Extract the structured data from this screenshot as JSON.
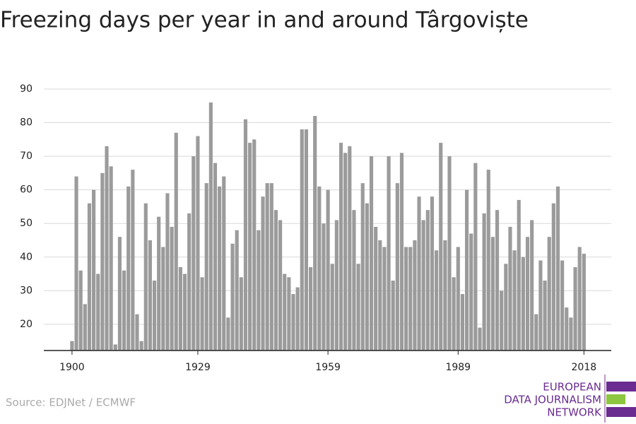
{
  "chart_data": {
    "type": "bar",
    "title": "Freezing days per year in and around Târgoviște",
    "source": "Source: EDJNet / ECMWF",
    "logo": [
      "EUROPEAN",
      "DATA JOURNALISM",
      "NETWORK"
    ],
    "x": [
      1900,
      1901,
      1902,
      1903,
      1904,
      1905,
      1906,
      1907,
      1908,
      1909,
      1910,
      1911,
      1912,
      1913,
      1914,
      1915,
      1916,
      1917,
      1918,
      1919,
      1920,
      1921,
      1922,
      1923,
      1924,
      1925,
      1926,
      1927,
      1928,
      1929,
      1930,
      1931,
      1932,
      1933,
      1934,
      1935,
      1936,
      1937,
      1938,
      1939,
      1940,
      1941,
      1942,
      1943,
      1944,
      1945,
      1946,
      1947,
      1948,
      1949,
      1950,
      1951,
      1952,
      1953,
      1954,
      1955,
      1956,
      1957,
      1958,
      1959,
      1960,
      1961,
      1962,
      1963,
      1964,
      1965,
      1966,
      1967,
      1968,
      1969,
      1970,
      1971,
      1972,
      1973,
      1974,
      1975,
      1976,
      1977,
      1978,
      1979,
      1980,
      1981,
      1982,
      1983,
      1984,
      1985,
      1986,
      1987,
      1988,
      1989,
      1990,
      1991,
      1992,
      1993,
      1994,
      1995,
      1996,
      1997,
      1998,
      1999,
      2000,
      2001,
      2002,
      2003,
      2004,
      2005,
      2006,
      2007,
      2008,
      2009,
      2010,
      2011,
      2012,
      2013,
      2014,
      2015,
      2016,
      2017,
      2018
    ],
    "values": [
      15,
      64,
      36,
      26,
      56,
      60,
      35,
      65,
      73,
      67,
      14,
      46,
      36,
      61,
      66,
      23,
      15,
      56,
      45,
      33,
      52,
      43,
      59,
      49,
      77,
      37,
      35,
      53,
      70,
      76,
      34,
      62,
      86,
      68,
      61,
      64,
      22,
      44,
      48,
      34,
      81,
      74,
      75,
      48,
      58,
      62,
      62,
      54,
      51,
      35,
      34,
      29,
      31,
      78,
      78,
      37,
      82,
      61,
      50,
      60,
      38,
      51,
      74,
      71,
      73,
      54,
      38,
      62,
      56,
      70,
      49,
      45,
      43,
      70,
      33,
      62,
      71,
      43,
      43,
      45,
      58,
      51,
      54,
      58,
      42,
      74,
      45,
      70,
      34,
      43,
      29,
      60,
      47,
      68,
      19,
      53,
      66,
      46,
      54,
      30,
      38,
      49,
      42,
      57,
      40,
      46,
      51,
      23,
      39,
      33,
      46,
      56,
      61,
      39,
      25,
      22,
      37,
      43,
      41
    ],
    "color": "#9b9b9b",
    "xlim": [
      1893.5,
      2024.3
    ],
    "xticks": [
      1900,
      1929,
      1959,
      1989,
      2018
    ],
    "ylim": [
      12.2,
      90
    ],
    "yticks": [
      20,
      30,
      40,
      50,
      60,
      70,
      80,
      90
    ],
    "grid": true
  }
}
